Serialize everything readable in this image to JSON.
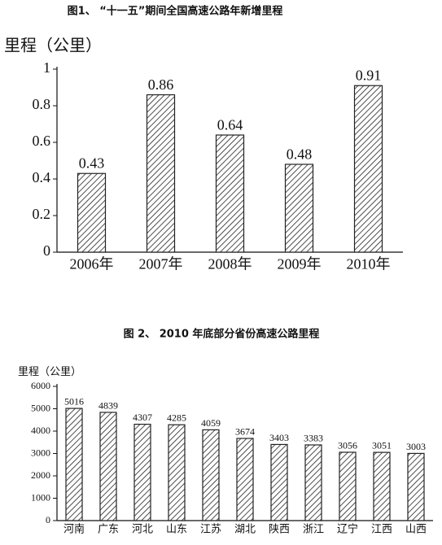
{
  "chart_data": [
    {
      "type": "bar",
      "title": "图1、 “十一五”期间全国高速公路年新增里程",
      "y_label": "里程（公里）",
      "categories": [
        "2006年",
        "2007年",
        "2008年",
        "2009年",
        "2010年"
      ],
      "values": [
        0.43,
        0.86,
        0.64,
        0.48,
        0.91
      ],
      "ylim": [
        0,
        1
      ],
      "yticks": [
        0,
        0.2,
        0.4,
        0.6,
        0.8,
        1
      ],
      "color": "#222222"
    },
    {
      "type": "bar",
      "title": "图 2、 2010 年底部分省份高速公路里程",
      "y_label": "里程（公里）",
      "categories": [
        "河南",
        "广东",
        "河北",
        "山东",
        "江苏",
        "湖北",
        "陕西",
        "浙江",
        "辽宁",
        "江西",
        "山西"
      ],
      "values": [
        5016,
        4839,
        4307,
        4285,
        4059,
        3674,
        3403,
        3383,
        3056,
        3051,
        3003
      ],
      "ylim": [
        0,
        6000
      ],
      "yticks": [
        0,
        1000,
        2000,
        3000,
        4000,
        5000,
        6000
      ],
      "color": "#222222"
    }
  ]
}
